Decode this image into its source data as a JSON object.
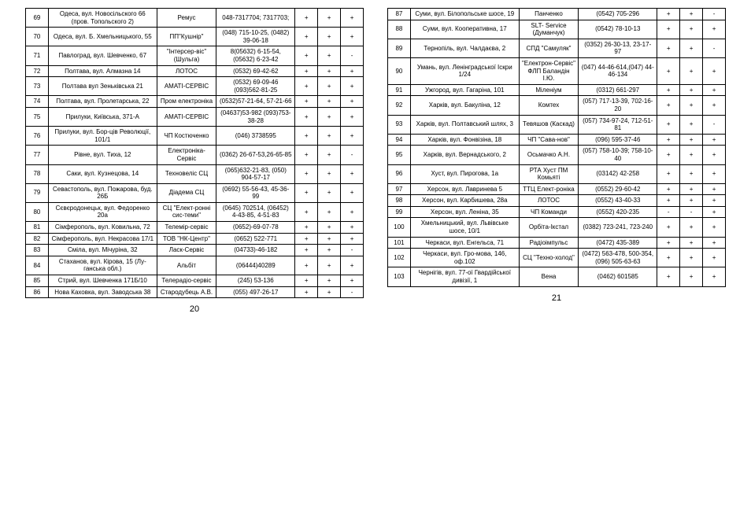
{
  "left": {
    "page_number": "20",
    "rows": [
      {
        "n": "69",
        "addr": "Одеса,  вул. Новосільского 66 (пров. Топольского 2)",
        "org": "Ремус",
        "phone": "048-7317704; 7317703;",
        "c1": "+",
        "c2": "+",
        "c3": "+"
      },
      {
        "n": "70",
        "addr": "Одеса, вул. Б. Хмельницького, 55",
        "org": "ПП\"Кушнір\"",
        "phone": "(048) 715-10-25, (0482) 39-06-18",
        "c1": "+",
        "c2": "+",
        "c3": "+"
      },
      {
        "n": "71",
        "addr": "Павлоград,   вул. Шевченко, 67",
        "org": "\"Інтерсер-віс\" (Шульга)",
        "phone": "8(05632) 6-15-54, (05632) 6-23-42",
        "c1": "+",
        "c2": "+",
        "c3": "-"
      },
      {
        "n": "72",
        "addr": "Полтава, вул. Алмазна 14",
        "org": "ЛОТОС",
        "phone": "(0532) 69-42-62",
        "c1": "+",
        "c2": "+",
        "c3": "+"
      },
      {
        "n": "73",
        "addr": "Полтава вул Зеньківська 21",
        "org": "АМАТІ-СЕРВІС",
        "phone": "(0532) 69-09-46 (093)562-81-25",
        "c1": "+",
        "c2": "+",
        "c3": "+"
      },
      {
        "n": "74",
        "addr": "Полтава, вул. Пролетарська, 22",
        "org": "Пром електроніка",
        "phone": "(0532)57-21-64, 57-21-66",
        "c1": "+",
        "c2": "+",
        "c3": "+"
      },
      {
        "n": "75",
        "addr": "Прилуки, Київська, 371-А",
        "org": "АМАТІ-СЕРВІС",
        "phone": "(04637)53-982 (093)753-38-28",
        "c1": "+",
        "c2": "+",
        "c3": "+"
      },
      {
        "n": "76",
        "addr": "Прилуки, вул. Бор-ців Революції, 101/1",
        "org": "ЧП Костюченко",
        "phone": "(046) 3738595",
        "c1": "+",
        "c2": "+",
        "c3": "+"
      },
      {
        "n": "77",
        "addr": "Рівне, вул. Тиха, 12",
        "org": "Електроніка-Сервіс",
        "phone": "(0362) 26-67-53,26-65-85",
        "c1": "+",
        "c2": "+",
        "c3": "-"
      },
      {
        "n": "78",
        "addr": "Саки, вул. Кузнецова, 14",
        "org": "Техновеліс СЦ",
        "phone": "(065)632-21-83, (050) 904-57-17",
        "c1": "+",
        "c2": "+",
        "c3": "+"
      },
      {
        "n": "79",
        "addr": "Севастополь, вул. Пожарова, буд. 26Б",
        "org": "Діадема СЦ",
        "phone": "(0692) 55-56-43, 45-36-99",
        "c1": "+",
        "c2": "+",
        "c3": "+"
      },
      {
        "n": "80",
        "addr": "Сєвєродонецьк, вул. Федоренко 20а",
        "org": "СЦ \"Елект-ронні сис-теми\"",
        "phone": "(0645) 702514, (06452) 4-43-85, 4-51-83",
        "c1": "+",
        "c2": "+",
        "c3": "+"
      },
      {
        "n": "81",
        "addr": "Сімферополь, вул. Ковильна, 72",
        "org": "Телемір-сервіс",
        "phone": "(0652)-69-07-78",
        "c1": "+",
        "c2": "+",
        "c3": "+"
      },
      {
        "n": "82",
        "addr": "Сімферополь, вул. Некрасова 17/1",
        "org": "ТОВ \"НК-Центр\"",
        "phone": "(0652) 522-771",
        "c1": "+",
        "c2": "+",
        "c3": "+"
      },
      {
        "n": "83",
        "addr": "Сміла, вул. Мічуріна, 32",
        "org": "Ласк-Сервіс",
        "phone": "(04733)-46-182",
        "c1": "+",
        "c2": "+",
        "c3": "-"
      },
      {
        "n": "84",
        "addr": "Стаханов, вул. Кірова, 15 (Лу-ганська обл.)",
        "org": "Альбіт",
        "phone": "(06444)40289",
        "c1": "+",
        "c2": "+",
        "c3": "+"
      },
      {
        "n": "85",
        "addr": "Стрий, вул. Шевченка 171Б/10",
        "org": "Телерадіо-сервіс",
        "phone": "(245) 53-136",
        "c1": "+",
        "c2": "+",
        "c3": "+"
      },
      {
        "n": "86",
        "addr": "Нова Каховка, вул. Заводська 38",
        "org": "Стародубець А.В.",
        "phone": "(055) 497-26-17",
        "c1": "+",
        "c2": "+",
        "c3": "-"
      }
    ]
  },
  "right": {
    "page_number": "21",
    "rows": [
      {
        "n": "87",
        "addr": "Суми, вул. Білопольське шосе, 19",
        "org": "Панченко",
        "phone": "(0542) 705-296",
        "c1": "+",
        "c2": "+",
        "c3": "-"
      },
      {
        "n": "88",
        "addr": "Суми, вул. Кооперативна, 17",
        "org": "SLT- Service (Думанчук)",
        "phone": "(0542) 78-10-13",
        "c1": "+",
        "c2": "+",
        "c3": "+"
      },
      {
        "n": "89",
        "addr": "Тернопіль, вул. Чалдаєва, 2",
        "org": "СПД \"Самуляк\"",
        "phone": "(0352) 26-30-13, 23-17-97",
        "c1": "+",
        "c2": "+",
        "c3": "-"
      },
      {
        "n": "90",
        "addr": "Умань, вул. Ленінградської Іскри 1/24",
        "org": "\"Електрон-Сервіс\" ФЛП Баландін І.Ю.",
        "phone": "(047) 44-46-614,(047) 44-46-134",
        "c1": "+",
        "c2": "+",
        "c3": "+"
      },
      {
        "n": "91",
        "addr": "Ужгород, вул. Гагаріна, 101",
        "org": "Міленіум",
        "phone": "(0312) 661-297",
        "c1": "+",
        "c2": "+",
        "c3": "+"
      },
      {
        "n": "92",
        "addr": "Харків, вул. Бакуліна, 12",
        "org": "Комтех",
        "phone": "(057) 717-13-39, 702-16-20",
        "c1": "+",
        "c2": "+",
        "c3": "+"
      },
      {
        "n": "93",
        "addr": "Харків, вул. Полтавський шлях, 3",
        "org": "Тевяшов (Каскад)",
        "phone": "(057) 734-97-24, 712-51-81",
        "c1": "+",
        "c2": "+",
        "c3": "-"
      },
      {
        "n": "94",
        "addr": "Харків, вул. Фонвізіна, 18",
        "org": "ЧП \"Сава-нов\"",
        "phone": "(096) 595-37-46",
        "c1": "+",
        "c2": "+",
        "c3": "+"
      },
      {
        "n": "95",
        "addr": "Харків, вул. Вернадського, 2",
        "org": "Осьмачко А.Н.",
        "phone": "(057) 758-10-39; 758-10-40",
        "c1": "+",
        "c2": "+",
        "c3": "+"
      },
      {
        "n": "96",
        "addr": "Хуст, вул. Пирогова, 1а",
        "org": "РТА Хуст ПМ Комьяті",
        "phone": "(03142) 42-258",
        "c1": "+",
        "c2": "+",
        "c3": "+"
      },
      {
        "n": "97",
        "addr": "Херсон, вул. Лавринева 5",
        "org": "ТТЦ Елект-роніка",
        "phone": "(0552) 29-60-42",
        "c1": "+",
        "c2": "+",
        "c3": "+"
      },
      {
        "n": "98",
        "addr": "Херсон, вул. Карбишева, 28а",
        "org": "ЛОТОС",
        "phone": "(0552) 43-40-33",
        "c1": "+",
        "c2": "+",
        "c3": "+"
      },
      {
        "n": "99",
        "addr": "Херсон, вул. Леніна, 35",
        "org": "ЧП Команди",
        "phone": "(0552) 420-235",
        "c1": "-",
        "c2": "-",
        "c3": "+"
      },
      {
        "n": "100",
        "addr": "Хмельницький, вул. Львівське шосе, 10/1",
        "org": "Орбіта-Ікстал",
        "phone": "(0382) 723-241, 723-240",
        "c1": "+",
        "c2": "+",
        "c3": "+"
      },
      {
        "n": "101",
        "addr": "Черкаси, вул. Енгельса, 71",
        "org": "Радіоімпульс",
        "phone": "(0472) 435-389",
        "c1": "+",
        "c2": "+",
        "c3": "+"
      },
      {
        "n": "102",
        "addr": "Черкаси, вул. Гро-мова, 146, оф.102",
        "org": "СЦ \"Техно-холод\"",
        "phone": "(0472) 563-478, 500-354, (096) 505-63-63",
        "c1": "+",
        "c2": "+",
        "c3": "+"
      },
      {
        "n": "103",
        "addr": "Чернігів, вул. 77-ої Гвардійської дивізії, 1",
        "org": "Вена",
        "phone": "(0462) 601585",
        "c1": "+",
        "c2": "+",
        "c3": "+"
      }
    ]
  }
}
